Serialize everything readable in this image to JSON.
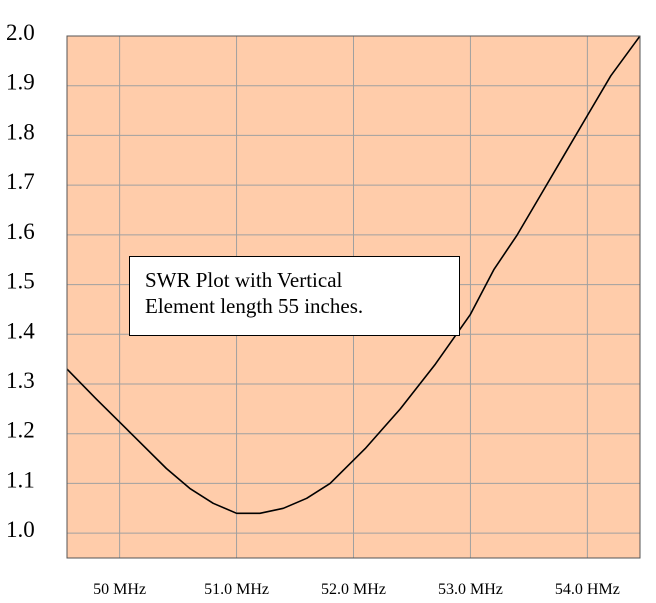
{
  "chart_data": {
    "type": "line",
    "title": "",
    "xlabel": "",
    "ylabel": "",
    "xlim": [
      49.55,
      54.45
    ],
    "ylim": [
      0.95,
      2.0
    ],
    "grid": true,
    "x_tick_values": [
      49.55,
      50.0,
      51.0,
      52.0,
      53.0,
      54.0
    ],
    "x_tick_labels": [
      "50 MHz",
      "51.0 MHz",
      "52.0 MHz",
      "53.0 MHz",
      "54.0 HMz"
    ],
    "x_label_values": [
      50.0,
      51.0,
      52.0,
      53.0,
      54.0
    ],
    "y_ticks": [
      1.0,
      1.1,
      1.2,
      1.3,
      1.4,
      1.5,
      1.6,
      1.7,
      1.8,
      1.9,
      2.0
    ],
    "y_tick_labels": [
      "1.0",
      "1.1",
      "1.2",
      "1.3",
      "1.4",
      "1.5",
      "1.6",
      "1.7",
      "1.8",
      "1.9",
      "2.0"
    ],
    "series": [
      {
        "x": [
          49.55,
          49.8,
          50.1,
          50.4,
          50.6,
          50.8,
          51.0,
          51.2,
          51.4,
          51.6,
          51.8,
          52.1,
          52.4,
          52.7,
          53.0,
          53.2,
          53.4,
          53.6,
          53.8,
          54.0,
          54.2,
          54.45
        ],
        "y": [
          1.33,
          1.27,
          1.2,
          1.13,
          1.09,
          1.06,
          1.04,
          1.04,
          1.05,
          1.07,
          1.1,
          1.17,
          1.25,
          1.34,
          1.44,
          1.53,
          1.6,
          1.68,
          1.76,
          1.84,
          1.92,
          2.0
        ]
      }
    ],
    "annotation": [
      "SWR Plot with Vertical",
      "Element length 55 inches."
    ],
    "colors": {
      "plot_background": "#FFCCAA",
      "grid": "#a0a0a0",
      "line": "#000000"
    }
  }
}
